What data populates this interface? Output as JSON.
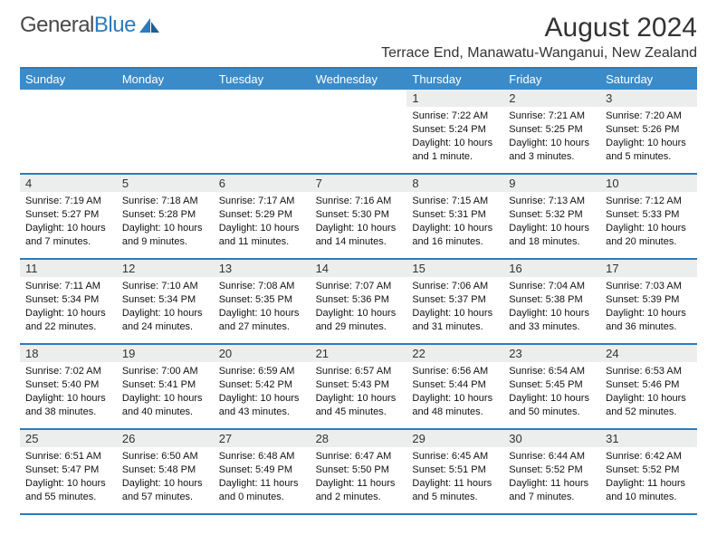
{
  "brand": {
    "name1": "General",
    "name2": "Blue"
  },
  "title": "August 2024",
  "location": "Terrace End, Manawatu-Wanganui, New Zealand",
  "colors": {
    "header_bg": "#3b8bc9",
    "rule": "#2b7bbd",
    "daynum_bg": "#eceded",
    "text": "#111111"
  },
  "day_labels": [
    "Sunday",
    "Monday",
    "Tuesday",
    "Wednesday",
    "Thursday",
    "Friday",
    "Saturday"
  ],
  "weeks": [
    [
      {
        "n": "",
        "sr": "",
        "ss": "",
        "dl": ""
      },
      {
        "n": "",
        "sr": "",
        "ss": "",
        "dl": ""
      },
      {
        "n": "",
        "sr": "",
        "ss": "",
        "dl": ""
      },
      {
        "n": "",
        "sr": "",
        "ss": "",
        "dl": ""
      },
      {
        "n": "1",
        "sr": "Sunrise: 7:22 AM",
        "ss": "Sunset: 5:24 PM",
        "dl": "Daylight: 10 hours and 1 minute."
      },
      {
        "n": "2",
        "sr": "Sunrise: 7:21 AM",
        "ss": "Sunset: 5:25 PM",
        "dl": "Daylight: 10 hours and 3 minutes."
      },
      {
        "n": "3",
        "sr": "Sunrise: 7:20 AM",
        "ss": "Sunset: 5:26 PM",
        "dl": "Daylight: 10 hours and 5 minutes."
      }
    ],
    [
      {
        "n": "4",
        "sr": "Sunrise: 7:19 AM",
        "ss": "Sunset: 5:27 PM",
        "dl": "Daylight: 10 hours and 7 minutes."
      },
      {
        "n": "5",
        "sr": "Sunrise: 7:18 AM",
        "ss": "Sunset: 5:28 PM",
        "dl": "Daylight: 10 hours and 9 minutes."
      },
      {
        "n": "6",
        "sr": "Sunrise: 7:17 AM",
        "ss": "Sunset: 5:29 PM",
        "dl": "Daylight: 10 hours and 11 minutes."
      },
      {
        "n": "7",
        "sr": "Sunrise: 7:16 AM",
        "ss": "Sunset: 5:30 PM",
        "dl": "Daylight: 10 hours and 14 minutes."
      },
      {
        "n": "8",
        "sr": "Sunrise: 7:15 AM",
        "ss": "Sunset: 5:31 PM",
        "dl": "Daylight: 10 hours and 16 minutes."
      },
      {
        "n": "9",
        "sr": "Sunrise: 7:13 AM",
        "ss": "Sunset: 5:32 PM",
        "dl": "Daylight: 10 hours and 18 minutes."
      },
      {
        "n": "10",
        "sr": "Sunrise: 7:12 AM",
        "ss": "Sunset: 5:33 PM",
        "dl": "Daylight: 10 hours and 20 minutes."
      }
    ],
    [
      {
        "n": "11",
        "sr": "Sunrise: 7:11 AM",
        "ss": "Sunset: 5:34 PM",
        "dl": "Daylight: 10 hours and 22 minutes."
      },
      {
        "n": "12",
        "sr": "Sunrise: 7:10 AM",
        "ss": "Sunset: 5:34 PM",
        "dl": "Daylight: 10 hours and 24 minutes."
      },
      {
        "n": "13",
        "sr": "Sunrise: 7:08 AM",
        "ss": "Sunset: 5:35 PM",
        "dl": "Daylight: 10 hours and 27 minutes."
      },
      {
        "n": "14",
        "sr": "Sunrise: 7:07 AM",
        "ss": "Sunset: 5:36 PM",
        "dl": "Daylight: 10 hours and 29 minutes."
      },
      {
        "n": "15",
        "sr": "Sunrise: 7:06 AM",
        "ss": "Sunset: 5:37 PM",
        "dl": "Daylight: 10 hours and 31 minutes."
      },
      {
        "n": "16",
        "sr": "Sunrise: 7:04 AM",
        "ss": "Sunset: 5:38 PM",
        "dl": "Daylight: 10 hours and 33 minutes."
      },
      {
        "n": "17",
        "sr": "Sunrise: 7:03 AM",
        "ss": "Sunset: 5:39 PM",
        "dl": "Daylight: 10 hours and 36 minutes."
      }
    ],
    [
      {
        "n": "18",
        "sr": "Sunrise: 7:02 AM",
        "ss": "Sunset: 5:40 PM",
        "dl": "Daylight: 10 hours and 38 minutes."
      },
      {
        "n": "19",
        "sr": "Sunrise: 7:00 AM",
        "ss": "Sunset: 5:41 PM",
        "dl": "Daylight: 10 hours and 40 minutes."
      },
      {
        "n": "20",
        "sr": "Sunrise: 6:59 AM",
        "ss": "Sunset: 5:42 PM",
        "dl": "Daylight: 10 hours and 43 minutes."
      },
      {
        "n": "21",
        "sr": "Sunrise: 6:57 AM",
        "ss": "Sunset: 5:43 PM",
        "dl": "Daylight: 10 hours and 45 minutes."
      },
      {
        "n": "22",
        "sr": "Sunrise: 6:56 AM",
        "ss": "Sunset: 5:44 PM",
        "dl": "Daylight: 10 hours and 48 minutes."
      },
      {
        "n": "23",
        "sr": "Sunrise: 6:54 AM",
        "ss": "Sunset: 5:45 PM",
        "dl": "Daylight: 10 hours and 50 minutes."
      },
      {
        "n": "24",
        "sr": "Sunrise: 6:53 AM",
        "ss": "Sunset: 5:46 PM",
        "dl": "Daylight: 10 hours and 52 minutes."
      }
    ],
    [
      {
        "n": "25",
        "sr": "Sunrise: 6:51 AM",
        "ss": "Sunset: 5:47 PM",
        "dl": "Daylight: 10 hours and 55 minutes."
      },
      {
        "n": "26",
        "sr": "Sunrise: 6:50 AM",
        "ss": "Sunset: 5:48 PM",
        "dl": "Daylight: 10 hours and 57 minutes."
      },
      {
        "n": "27",
        "sr": "Sunrise: 6:48 AM",
        "ss": "Sunset: 5:49 PM",
        "dl": "Daylight: 11 hours and 0 minutes."
      },
      {
        "n": "28",
        "sr": "Sunrise: 6:47 AM",
        "ss": "Sunset: 5:50 PM",
        "dl": "Daylight: 11 hours and 2 minutes."
      },
      {
        "n": "29",
        "sr": "Sunrise: 6:45 AM",
        "ss": "Sunset: 5:51 PM",
        "dl": "Daylight: 11 hours and 5 minutes."
      },
      {
        "n": "30",
        "sr": "Sunrise: 6:44 AM",
        "ss": "Sunset: 5:52 PM",
        "dl": "Daylight: 11 hours and 7 minutes."
      },
      {
        "n": "31",
        "sr": "Sunrise: 6:42 AM",
        "ss": "Sunset: 5:52 PM",
        "dl": "Daylight: 11 hours and 10 minutes."
      }
    ]
  ]
}
